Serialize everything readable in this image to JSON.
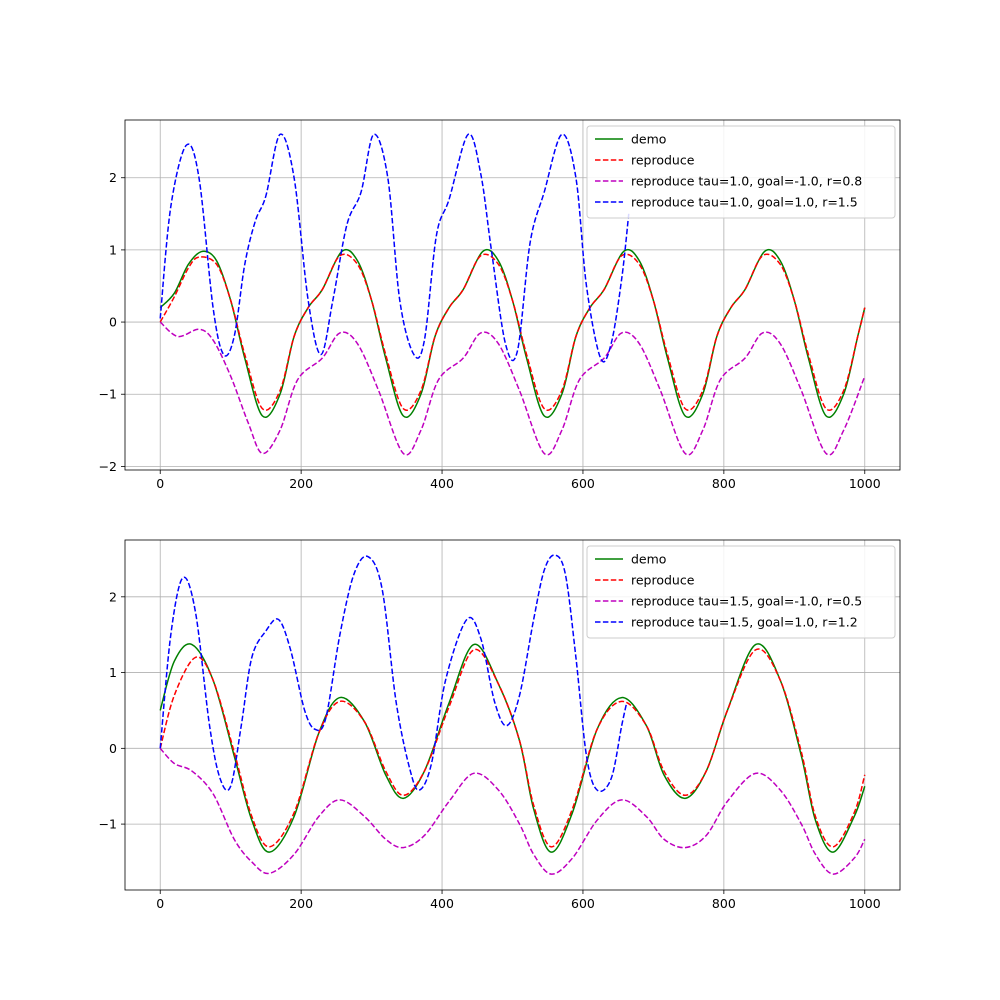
{
  "colors": {
    "demo": "#008000",
    "reproduce": "#ff0000",
    "magenta": "#bf00bf",
    "blue": "#0000ff",
    "grid": "#b0b0b0",
    "axes": "#000000"
  },
  "chart_data": [
    {
      "type": "line",
      "xlim": [
        -50,
        1050
      ],
      "ylim": [
        -2.05,
        2.8
      ],
      "grid": true,
      "legend_position": "upper-right",
      "x_ticks": [
        0,
        200,
        400,
        600,
        800,
        1000
      ],
      "x_tick_labels": [
        "0",
        "200",
        "400",
        "600",
        "800",
        "1000"
      ],
      "y_ticks": [
        -2,
        -1,
        0,
        1,
        2
      ],
      "y_tick_labels": [
        "−2",
        "−1",
        "0",
        "1",
        "2"
      ],
      "series": [
        {
          "name": "demo",
          "color": "#008000",
          "style": "solid",
          "x": [
            0,
            20,
            40,
            60,
            80,
            100,
            120,
            145,
            170,
            190,
            210,
            230,
            258,
            280,
            300,
            320,
            345,
            370,
            390,
            410,
            430,
            458,
            480,
            500,
            520,
            545,
            570,
            590,
            610,
            630,
            658,
            680,
            700,
            720,
            745,
            770,
            790,
            810,
            830,
            858,
            880,
            900,
            920,
            945,
            970,
            990,
            1000
          ],
          "y": [
            0.2,
            0.4,
            0.8,
            0.98,
            0.85,
            0.3,
            -0.5,
            -1.3,
            -1.0,
            -0.2,
            0.2,
            0.45,
            0.98,
            0.85,
            0.3,
            -0.5,
            -1.3,
            -1.0,
            -0.2,
            0.2,
            0.45,
            0.98,
            0.85,
            0.3,
            -0.5,
            -1.3,
            -1.0,
            -0.2,
            0.2,
            0.45,
            0.98,
            0.85,
            0.3,
            -0.5,
            -1.3,
            -1.0,
            -0.2,
            0.2,
            0.45,
            0.98,
            0.85,
            0.3,
            -0.5,
            -1.3,
            -1.0,
            -0.2,
            0.2
          ]
        },
        {
          "name": "reproduce",
          "color": "#ff0000",
          "style": "dashed",
          "x": [
            0,
            20,
            40,
            55,
            80,
            100,
            120,
            145,
            170,
            190,
            210,
            230,
            255,
            280,
            300,
            320,
            345,
            370,
            390,
            410,
            430,
            455,
            480,
            500,
            520,
            545,
            570,
            590,
            610,
            630,
            655,
            680,
            700,
            720,
            745,
            770,
            790,
            810,
            830,
            855,
            880,
            900,
            920,
            945,
            970,
            990,
            1000
          ],
          "y": [
            0.0,
            0.35,
            0.75,
            0.9,
            0.8,
            0.3,
            -0.45,
            -1.2,
            -0.95,
            -0.2,
            0.2,
            0.45,
            0.92,
            0.8,
            0.3,
            -0.45,
            -1.2,
            -0.95,
            -0.2,
            0.2,
            0.45,
            0.92,
            0.8,
            0.3,
            -0.45,
            -1.2,
            -0.95,
            -0.2,
            0.2,
            0.45,
            0.92,
            0.8,
            0.3,
            -0.45,
            -1.2,
            -0.95,
            -0.2,
            0.2,
            0.45,
            0.92,
            0.8,
            0.3,
            -0.45,
            -1.2,
            -0.95,
            -0.2,
            0.2
          ]
        },
        {
          "name": "reproduce tau=1.0, goal=-1.0, r=0.8",
          "color": "#bf00bf",
          "style": "dashed",
          "x": [
            0,
            25,
            55,
            75,
            100,
            125,
            145,
            170,
            195,
            230,
            255,
            280,
            310,
            345,
            370,
            395,
            430,
            455,
            480,
            510,
            545,
            570,
            595,
            630,
            655,
            680,
            710,
            745,
            770,
            795,
            830,
            855,
            880,
            910,
            945,
            970,
            1000
          ],
          "y": [
            0.0,
            -0.2,
            -0.1,
            -0.25,
            -0.75,
            -1.4,
            -1.82,
            -1.5,
            -0.8,
            -0.5,
            -0.15,
            -0.3,
            -0.95,
            -1.82,
            -1.5,
            -0.8,
            -0.5,
            -0.15,
            -0.3,
            -0.95,
            -1.82,
            -1.5,
            -0.8,
            -0.5,
            -0.15,
            -0.3,
            -0.95,
            -1.82,
            -1.5,
            -0.8,
            -0.5,
            -0.15,
            -0.3,
            -0.95,
            -1.82,
            -1.5,
            -0.75
          ]
        },
        {
          "name": "reproduce tau=1.0, goal=1.0, r=1.5",
          "color": "#0000ff",
          "style": "dashed",
          "x": [
            0,
            15,
            37,
            55,
            75,
            90,
            105,
            120,
            135,
            150,
            170,
            190,
            210,
            228,
            245,
            265,
            285,
            303,
            323,
            340,
            360,
            375,
            392,
            410,
            437,
            455,
            470,
            490,
            507,
            525,
            545,
            570,
            590,
            605,
            625,
            640,
            655,
            665
          ],
          "y": [
            0.05,
            1.6,
            2.45,
            2.0,
            0.2,
            -0.45,
            -0.2,
            0.8,
            1.4,
            1.75,
            2.6,
            2.0,
            0.3,
            -0.45,
            0.3,
            1.35,
            1.8,
            2.6,
            2.0,
            0.3,
            -0.45,
            -0.25,
            1.2,
            1.7,
            2.6,
            2.05,
            1.0,
            -0.3,
            -0.4,
            1.1,
            1.8,
            2.6,
            2.0,
            0.5,
            -0.5,
            -0.3,
            0.6,
            1.5
          ]
        }
      ]
    },
    {
      "type": "line",
      "xlim": [
        -50,
        1050
      ],
      "ylim": [
        -1.87,
        2.75
      ],
      "grid": true,
      "legend_position": "upper-right",
      "x_ticks": [
        0,
        200,
        400,
        600,
        800,
        1000
      ],
      "x_tick_labels": [
        "0",
        "200",
        "400",
        "600",
        "800",
        "1000"
      ],
      "y_ticks": [
        -1,
        0,
        1,
        2
      ],
      "y_tick_labels": [
        "−1",
        "0",
        "1",
        "2"
      ],
      "series": [
        {
          "name": "demo",
          "color": "#008000",
          "style": "solid",
          "x": [
            0,
            20,
            45,
            75,
            105,
            130,
            155,
            190,
            225,
            255,
            290,
            320,
            345,
            375,
            410,
            445,
            480,
            510,
            530,
            555,
            585,
            620,
            655,
            690,
            715,
            745,
            775,
            805,
            845,
            880,
            910,
            930,
            955,
            985,
            1000
          ],
          "y": [
            0.5,
            1.15,
            1.37,
            0.9,
            -0.1,
            -0.95,
            -1.37,
            -0.9,
            0.2,
            0.67,
            0.35,
            -0.35,
            -0.66,
            -0.3,
            0.6,
            1.37,
            0.85,
            0.1,
            -0.8,
            -1.37,
            -0.85,
            0.25,
            0.67,
            0.3,
            -0.35,
            -0.66,
            -0.3,
            0.5,
            1.37,
            0.9,
            -0.1,
            -0.95,
            -1.37,
            -0.9,
            -0.5
          ]
        },
        {
          "name": "reproduce",
          "color": "#ff0000",
          "style": "dashed",
          "x": [
            0,
            20,
            50,
            75,
            105,
            130,
            155,
            190,
            225,
            255,
            290,
            320,
            345,
            375,
            410,
            445,
            480,
            510,
            530,
            555,
            585,
            620,
            655,
            690,
            715,
            745,
            775,
            805,
            845,
            880,
            910,
            930,
            955,
            985,
            1000
          ],
          "y": [
            0.0,
            0.7,
            1.2,
            0.9,
            -0.05,
            -0.9,
            -1.3,
            -0.85,
            0.2,
            0.62,
            0.35,
            -0.3,
            -0.62,
            -0.3,
            0.55,
            1.3,
            0.85,
            0.1,
            -0.75,
            -1.3,
            -0.8,
            0.25,
            0.62,
            0.3,
            -0.3,
            -0.62,
            -0.3,
            0.5,
            1.3,
            0.9,
            -0.05,
            -0.9,
            -1.3,
            -0.85,
            -0.35
          ]
        },
        {
          "name": "reproduce tau=1.5, goal=-1.0, r=0.5",
          "color": "#bf00bf",
          "style": "dashed",
          "x": [
            0,
            20,
            45,
            75,
            105,
            130,
            155,
            190,
            225,
            255,
            290,
            320,
            345,
            375,
            410,
            445,
            480,
            510,
            530,
            555,
            585,
            620,
            655,
            690,
            715,
            745,
            775,
            805,
            845,
            880,
            910,
            930,
            955,
            985,
            1000
          ],
          "y": [
            0.0,
            -0.2,
            -0.3,
            -0.6,
            -1.2,
            -1.5,
            -1.65,
            -1.4,
            -0.9,
            -0.68,
            -0.9,
            -1.2,
            -1.31,
            -1.15,
            -0.7,
            -0.33,
            -0.55,
            -1.0,
            -1.4,
            -1.66,
            -1.45,
            -0.95,
            -0.68,
            -0.9,
            -1.2,
            -1.31,
            -1.15,
            -0.7,
            -0.33,
            -0.55,
            -1.0,
            -1.4,
            -1.66,
            -1.45,
            -1.2
          ]
        },
        {
          "name": "reproduce tau=1.5, goal=1.0, r=1.2",
          "color": "#0000ff",
          "style": "dashed",
          "x": [
            0,
            15,
            32,
            50,
            70,
            85,
            100,
            115,
            130,
            150,
            168,
            185,
            205,
            220,
            235,
            255,
            275,
            295,
            315,
            335,
            355,
            368,
            385,
            405,
            435,
            455,
            475,
            492,
            510,
            530,
            545,
            560,
            575,
            590,
            605,
            620,
            640,
            655,
            662
          ],
          "y": [
            0.0,
            1.5,
            2.25,
            1.8,
            0.3,
            -0.4,
            -0.5,
            0.3,
            1.2,
            1.55,
            1.7,
            1.3,
            0.5,
            0.25,
            0.4,
            1.5,
            2.3,
            2.53,
            2.1,
            0.6,
            -0.3,
            -0.55,
            -0.2,
            0.9,
            1.7,
            1.45,
            0.6,
            0.3,
            0.7,
            1.7,
            2.35,
            2.55,
            2.3,
            1.2,
            -0.1,
            -0.55,
            -0.4,
            0.3,
            0.6
          ]
        }
      ]
    }
  ]
}
